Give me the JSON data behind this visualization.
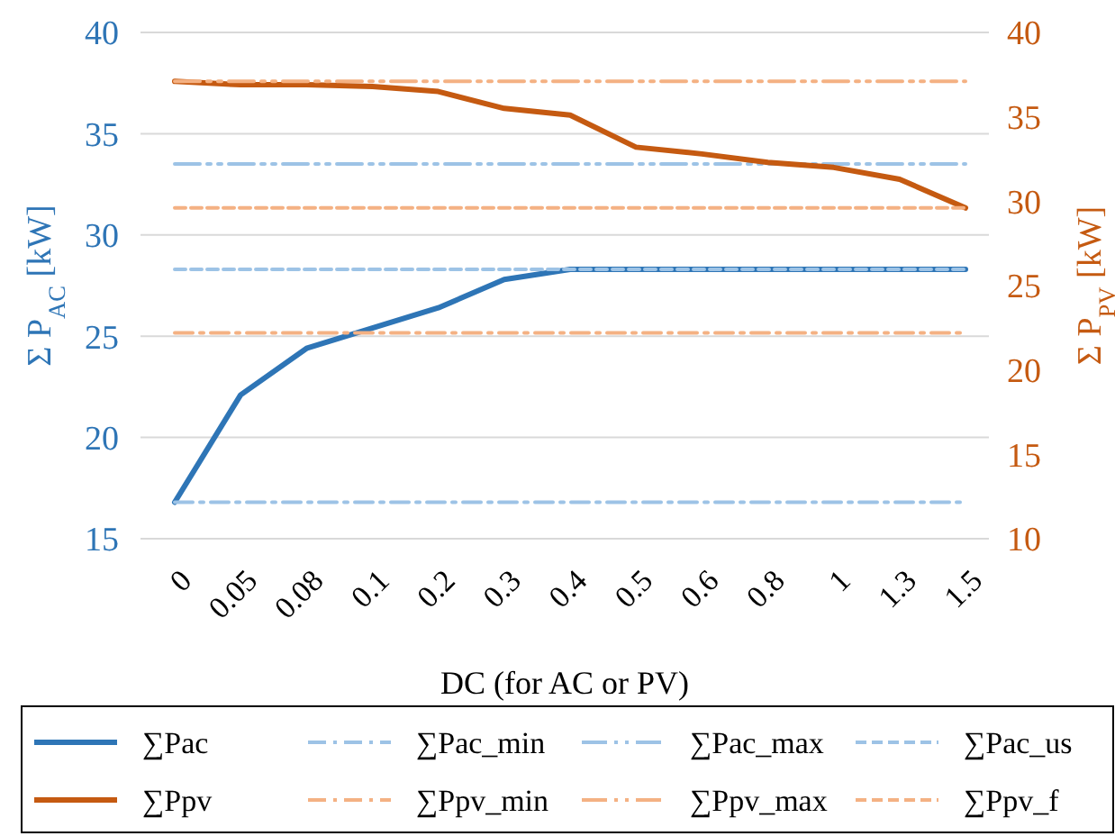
{
  "chart_data": {
    "type": "line",
    "xlabel": "DC (for AC or PV)",
    "ylabel": "Σ P$_{AC}$ [kW]",
    "y2label": "Σ P$_{PV}$ [kW]",
    "categories": [
      "0",
      "0.05",
      "0.08",
      "0.1",
      "0.2",
      "0.3",
      "0.4",
      "0.5",
      "0.6",
      "0.8",
      "1",
      "1.3",
      "1.5"
    ],
    "ylim": [
      15,
      40
    ],
    "yticks": [
      15,
      20,
      25,
      30,
      35,
      40
    ],
    "y2lim": [
      10,
      40
    ],
    "y2ticks": [
      10,
      15,
      20,
      25,
      30,
      35,
      40
    ],
    "grid": "y",
    "legend": "bottom",
    "marker": "none",
    "series": [
      {
        "name": "∑Pac",
        "color": "#2e75b6",
        "line_style": "solid",
        "values": [
          16.8,
          22.1,
          24.4,
          25.4,
          26.4,
          27.8,
          28.3,
          28.3,
          28.3,
          28.3,
          28.3,
          28.3,
          28.3
        ]
      },
      {
        "name": "∑Pac_min",
        "color": "#9dc3e6",
        "line_style": "dashdot",
        "values": [
          16.8,
          16.8,
          16.8,
          16.8,
          16.8,
          16.8,
          16.8,
          16.8,
          16.8,
          16.8,
          16.8,
          16.8,
          16.8
        ]
      },
      {
        "name": "∑Pac_max",
        "color": "#9dc3e6",
        "line_style": "dashdotdot",
        "values": [
          33.5,
          33.5,
          33.5,
          33.5,
          33.5,
          33.5,
          33.5,
          33.5,
          33.5,
          33.5,
          33.5,
          33.5,
          33.5
        ]
      },
      {
        "name": "∑Pac_us",
        "color": "#9dc3e6",
        "line_style": "dashed",
        "values": [
          28.3,
          28.3,
          28.3,
          28.3,
          28.3,
          28.3,
          28.3,
          28.3,
          28.3,
          28.3,
          28.3,
          28.3,
          28.3
        ]
      },
      {
        "name": "∑Ppv",
        "color": "#c55a11",
        "line_style": "solid",
        "axis": "y2",
        "values": [
          37.1,
          36.9,
          36.9,
          36.8,
          36.5,
          35.5,
          35.1,
          33.2,
          32.8,
          32.3,
          32.0,
          31.3,
          29.6
        ]
      },
      {
        "name": "∑Ppv_min",
        "color": "#f4b183",
        "line_style": "dashdot",
        "axis": "y2",
        "values": [
          22.2,
          22.2,
          22.2,
          22.2,
          22.2,
          22.2,
          22.2,
          22.2,
          22.2,
          22.2,
          22.2,
          22.2,
          22.2
        ]
      },
      {
        "name": "∑Ppv_max",
        "color": "#f4b183",
        "line_style": "dashdotdot",
        "axis": "y2",
        "values": [
          37.1,
          37.1,
          37.1,
          37.1,
          37.1,
          37.1,
          37.1,
          37.1,
          37.1,
          37.1,
          37.1,
          37.1,
          37.1
        ]
      },
      {
        "name": "∑Ppv_f",
        "color": "#f4b183",
        "line_style": "dashed",
        "axis": "y2",
        "values": [
          29.6,
          29.6,
          29.6,
          29.6,
          29.6,
          29.6,
          29.6,
          29.6,
          29.6,
          29.6,
          29.6,
          29.6,
          29.6
        ]
      }
    ]
  }
}
